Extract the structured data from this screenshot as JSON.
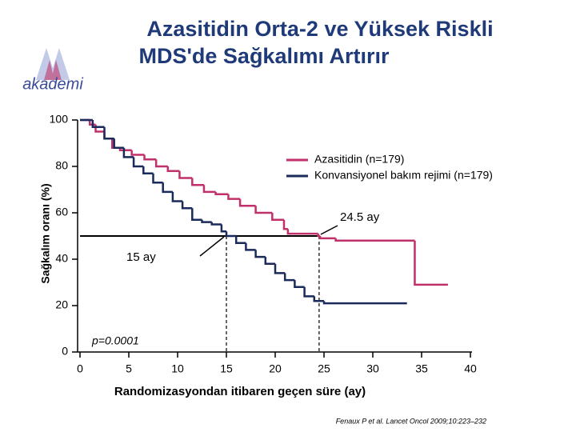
{
  "logo": "akademi",
  "chart_data": {
    "type": "line",
    "step": true,
    "title": [
      "Azasitidin Orta-2 ve Yüksek Riskli",
      "MDS'de Sağkalımı Artırır"
    ],
    "x_label": "Randomizasyondan itibaren geçen süre (ay)",
    "y_label": "Sağkalım oranı (%)",
    "xlim": [
      0,
      40
    ],
    "xticks": [
      0,
      5,
      10,
      15,
      20,
      25,
      30,
      35,
      40
    ],
    "ylim": [
      0,
      100
    ],
    "yticks": [
      0,
      20,
      40,
      60,
      80,
      100
    ],
    "legend": "upper right",
    "series": [
      {
        "name": "Azasitidin (n=179)",
        "color": "#c0306a",
        "x": [
          0,
          1,
          1.6,
          2.5,
          3.3,
          4.1,
          5.3,
          6.6,
          7.8,
          9,
          10.2,
          11.5,
          12.7,
          13.9,
          15.2,
          16.4,
          18,
          19.7,
          20.9,
          21.3,
          24.4,
          24.6,
          26.2,
          34.3,
          37.7
        ],
        "values": [
          100,
          98,
          95,
          92,
          88,
          87,
          85,
          83,
          80,
          78,
          75,
          72,
          69,
          68,
          66,
          63,
          60,
          57,
          53,
          51,
          50,
          49,
          48,
          29,
          29
        ]
      },
      {
        "name": "Konvansiyonel bakım rejimi (n=179)",
        "color": "#1a2a5a",
        "x": [
          0,
          1.3,
          2.5,
          3.5,
          4.5,
          5.5,
          6.5,
          7.5,
          8.5,
          9.5,
          10.5,
          11.5,
          12.5,
          13.5,
          14.5,
          15,
          16,
          17,
          18,
          19,
          20,
          21,
          22,
          23,
          24,
          25,
          33.5
        ],
        "values": [
          100,
          97,
          92,
          88,
          84,
          80,
          77,
          73,
          69,
          65,
          62,
          57,
          56,
          55,
          52,
          50,
          47,
          44,
          41,
          38,
          34,
          31,
          28,
          24,
          22,
          21,
          21
        ]
      }
    ],
    "median_line": {
      "y": 50,
      "x": [
        15,
        24.5
      ]
    },
    "annotations": [
      "15 ay",
      "24.5 ay",
      "p=0.0001"
    ],
    "source": "Fenaux P et al. Lancet Oncol 2009;10:223–232"
  }
}
